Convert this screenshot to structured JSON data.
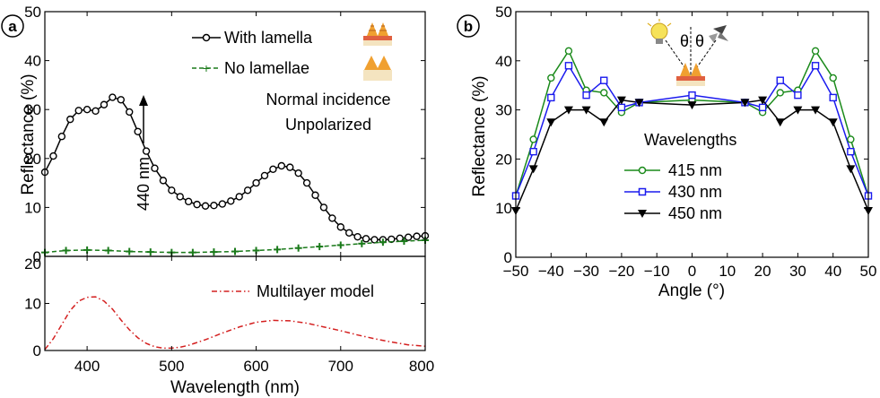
{
  "chart_data": [
    {
      "panel": "a",
      "type": "line",
      "subplot": "top",
      "xlabel": "",
      "ylabel": "Reflectance (%)",
      "xlim": [
        350,
        800
      ],
      "ylim": [
        0,
        50
      ],
      "yticks": [
        "0",
        "10",
        "20",
        "30",
        "40",
        "50"
      ],
      "annotation": "440 nm",
      "annotation_x": 440,
      "annotation_lines": [
        "Normal incidence",
        "Unpolarized"
      ],
      "series": [
        {
          "name": "With lamella",
          "color": "#000000",
          "marker": "circle",
          "x": [
            350,
            360,
            370,
            380,
            390,
            400,
            410,
            420,
            430,
            440,
            450,
            460,
            470,
            480,
            490,
            500,
            510,
            520,
            530,
            540,
            550,
            560,
            570,
            580,
            590,
            600,
            610,
            620,
            630,
            640,
            650,
            660,
            670,
            680,
            690,
            700,
            710,
            720,
            730,
            740,
            750,
            760,
            770,
            780,
            790,
            800
          ],
          "y": [
            17.2,
            20.5,
            24.5,
            28,
            29.8,
            30,
            29.7,
            31,
            32.5,
            32,
            29.5,
            25.5,
            21.5,
            18,
            15.5,
            13.5,
            12.2,
            11.2,
            10.6,
            10.3,
            10.4,
            10.7,
            11.3,
            12.2,
            13.5,
            15,
            16.5,
            17.8,
            18.5,
            18.2,
            17,
            15,
            12.5,
            10,
            7.8,
            6,
            4.8,
            4,
            3.6,
            3.4,
            3.4,
            3.5,
            3.7,
            3.9,
            4.1,
            4.2
          ]
        },
        {
          "name": "No lamellae",
          "color": "#1a7a1a",
          "marker": "plus",
          "x": [
            350,
            375,
            400,
            425,
            450,
            475,
            500,
            525,
            550,
            575,
            600,
            625,
            650,
            675,
            700,
            725,
            750,
            775,
            800
          ],
          "y": [
            0.8,
            1.2,
            1.3,
            1.2,
            1,
            0.9,
            0.8,
            0.8,
            0.9,
            1,
            1.2,
            1.4,
            1.7,
            2,
            2.3,
            2.6,
            2.9,
            3.1,
            3.3
          ]
        }
      ]
    },
    {
      "panel": "a",
      "type": "line",
      "subplot": "bottom",
      "xlabel": "Wavelength (nm)",
      "ylabel": "",
      "xlim": [
        350,
        800
      ],
      "ylim": [
        0,
        20
      ],
      "xticks": [
        "400",
        "500",
        "600",
        "700",
        "800"
      ],
      "yticks": [
        "0",
        "10",
        "20"
      ],
      "series": [
        {
          "name": "Multilayer model",
          "color": "#d42020",
          "x": [
            350,
            360,
            370,
            380,
            390,
            400,
            410,
            420,
            430,
            440,
            450,
            460,
            470,
            480,
            490,
            500,
            510,
            520,
            540,
            560,
            580,
            600,
            620,
            640,
            660,
            680,
            700,
            720,
            740,
            760,
            780,
            800
          ],
          "y": [
            0.2,
            2.5,
            5.5,
            8.5,
            10.5,
            11.3,
            11.4,
            10.5,
            8.8,
            6.5,
            4.4,
            2.7,
            1.5,
            0.8,
            0.5,
            0.5,
            0.7,
            1.1,
            2.3,
            3.7,
            5,
            6,
            6.4,
            6.3,
            5.8,
            5,
            4.2,
            3.3,
            2.5,
            1.8,
            1.2,
            0.9
          ]
        }
      ]
    },
    {
      "panel": "b",
      "type": "line",
      "xlabel": "Angle (°)",
      "ylabel": "Reflectance (%)",
      "xlim": [
        -50,
        50
      ],
      "ylim": [
        0,
        50
      ],
      "xticks": [
        "−50",
        "−40",
        "−30",
        "−20",
        "−10",
        "0",
        "10",
        "20",
        "30",
        "40",
        "50"
      ],
      "yticks": [
        "0",
        "10",
        "20",
        "30",
        "40",
        "50"
      ],
      "legend_title": "Wavelengths",
      "angle_labels": [
        "θ",
        "θ"
      ],
      "series": [
        {
          "name": "415 nm",
          "color": "#1a8a1a",
          "marker": "circle",
          "x": [
            -50,
            -45,
            -40,
            -35,
            -30,
            -25,
            -20,
            -15,
            0,
            15,
            20,
            25,
            30,
            35,
            40,
            45,
            50
          ],
          "y": [
            12.5,
            24,
            36.5,
            42,
            34,
            33.5,
            29.5,
            31.5,
            32,
            31.5,
            29.5,
            33.5,
            34,
            42,
            36.5,
            24,
            12.5
          ]
        },
        {
          "name": "430 nm",
          "color": "#1a1aee",
          "marker": "square",
          "x": [
            -50,
            -45,
            -40,
            -35,
            -30,
            -25,
            -20,
            -15,
            0,
            15,
            20,
            25,
            30,
            35,
            40,
            45,
            50
          ],
          "y": [
            12.5,
            21.5,
            32.5,
            39,
            33,
            36,
            30.5,
            31.5,
            33,
            31.5,
            30.5,
            36,
            33,
            39,
            32.5,
            21.5,
            12.5
          ]
        },
        {
          "name": "450 nm",
          "color": "#000000",
          "marker": "triangle-down",
          "x": [
            -50,
            -45,
            -40,
            -35,
            -30,
            -25,
            -20,
            -15,
            0,
            15,
            20,
            25,
            30,
            35,
            40,
            45,
            50
          ],
          "y": [
            9.5,
            18,
            27.5,
            30,
            30,
            27.5,
            32,
            31.5,
            31,
            31.5,
            32,
            27.5,
            30,
            30,
            27.5,
            18,
            9.5
          ]
        }
      ]
    }
  ],
  "labels": {
    "panel_a": "a",
    "panel_b": "b"
  }
}
